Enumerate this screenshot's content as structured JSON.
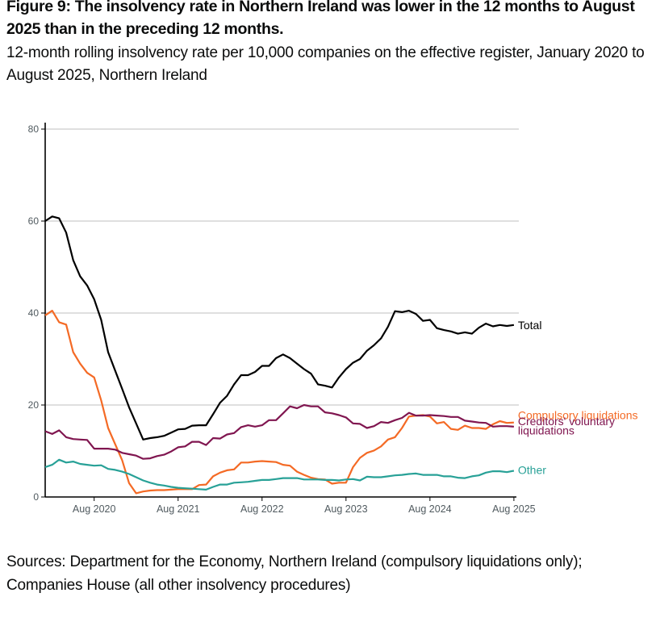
{
  "figure": {
    "title": "Figure 9: The insolvency rate in Northern Ireland was lower in the 12 months to August 2025 than in the preceding 12 months.",
    "subtitle": "12-month rolling insolvency rate per 10,000 companies on the effective register, January 2020 to August 2025, Northern Ireland",
    "source": "Sources: Department for the Economy, Northern Ireland (compulsory liquidations only); Companies House (all other insolvency procedures)"
  },
  "chart_data": {
    "type": "line",
    "title": "12-month rolling insolvency rate per 10,000 companies on the effective register",
    "xlabel": "",
    "ylabel": "",
    "x_start": "Jan 2020",
    "x_end": "Aug 2025",
    "x_ticks": [
      {
        "label": "Aug 2020",
        "month_index": 7
      },
      {
        "label": "Aug 2021",
        "month_index": 19
      },
      {
        "label": "Aug 2022",
        "month_index": 31
      },
      {
        "label": "Aug 2023",
        "month_index": 43
      },
      {
        "label": "Aug 2024",
        "month_index": 55
      },
      {
        "label": "Aug 2025",
        "month_index": 67
      }
    ],
    "y_ticks": [
      0,
      20,
      40,
      60,
      80
    ],
    "ylim": [
      0,
      80
    ],
    "grid": "horizontal",
    "legend": "direct labels at right end of lines",
    "series": [
      {
        "name": "Total",
        "label_lines": [
          "Total"
        ],
        "color": "#000000",
        "values": [
          60,
          61,
          60.6,
          57.5,
          51.5,
          48,
          46,
          43,
          38.5,
          31.5,
          27.5,
          23.5,
          19.5,
          16,
          12.5,
          12.8,
          13,
          13.3,
          14,
          14.7,
          14.8,
          15.5,
          15.6,
          15.6,
          18,
          20.5,
          22,
          24.5,
          26.5,
          26.5,
          27.2,
          28.5,
          28.5,
          30.2,
          31,
          30.2,
          29,
          27.8,
          26.8,
          24.5,
          24.2,
          23.8,
          26,
          27.8,
          29.2,
          30,
          31.8,
          33,
          34.5,
          37,
          40.4,
          40.2,
          40.5,
          39.8,
          38.3,
          38.5,
          36.7,
          36.3,
          36,
          35.5,
          35.8,
          35.5,
          36.8,
          37.7,
          37.1,
          37.4,
          37.2,
          37.4
        ]
      },
      {
        "name": "Compulsory liquidations",
        "label_lines": [
          "Compulsory liquidations"
        ],
        "color": "#f46a25",
        "values": [
          39.5,
          40.5,
          38,
          37.5,
          31.5,
          29,
          27,
          26,
          21,
          15,
          11.5,
          8,
          3,
          0.8,
          1.2,
          1.4,
          1.5,
          1.5,
          1.6,
          1.7,
          1.7,
          1.7,
          2.6,
          2.7,
          4.5,
          5.3,
          5.8,
          6,
          7.5,
          7.5,
          7.7,
          7.8,
          7.7,
          7.6,
          7,
          6.8,
          5.5,
          4.8,
          4.2,
          3.9,
          3.8,
          2.9,
          3.1,
          3.1,
          6.5,
          8.5,
          9.6,
          10.1,
          11,
          12.5,
          13,
          15,
          17.5,
          17.7,
          17.8,
          17.5,
          16,
          16.3,
          14.8,
          14.6,
          15.5,
          15,
          15,
          14.8,
          15.8,
          16.5,
          16.1,
          16.2
        ]
      },
      {
        "name": "Creditors' voluntary liquidations",
        "label_lines": [
          "Creditors' voluntary",
          "liquidations"
        ],
        "color": "#801650",
        "values": [
          14.3,
          13.7,
          14.5,
          13,
          12.6,
          12.5,
          12.4,
          10.5,
          10.5,
          10.5,
          10.3,
          9.6,
          9.3,
          9,
          8.3,
          8.4,
          8.9,
          9.2,
          9.9,
          10.8,
          11,
          12,
          12,
          11.3,
          12.8,
          12.7,
          13.6,
          13.9,
          15.2,
          15.6,
          15.3,
          15.6,
          16.7,
          16.7,
          18.2,
          19.7,
          19.3,
          20,
          19.7,
          19.7,
          18.4,
          18.2,
          17.8,
          17.3,
          16,
          15.9,
          15,
          15.4,
          16.3,
          16.1,
          16.7,
          17.2,
          18.3,
          17.7,
          17.7,
          17.8,
          17.7,
          17.6,
          17.4,
          17.4,
          16.6,
          16.4,
          16.2,
          16.1,
          15.3,
          15.4,
          15.4,
          15.3
        ]
      },
      {
        "name": "Other",
        "label_lines": [
          "Other"
        ],
        "color": "#28a197",
        "values": [
          6.5,
          7,
          8.1,
          7.5,
          7.7,
          7.2,
          7,
          6.8,
          6.9,
          6.1,
          5.9,
          5.5,
          5,
          4.3,
          3.6,
          3.1,
          2.7,
          2.5,
          2.2,
          2,
          1.9,
          1.8,
          1.7,
          1.6,
          2.2,
          2.7,
          2.7,
          3.1,
          3.2,
          3.3,
          3.5,
          3.7,
          3.7,
          3.9,
          4.1,
          4.1,
          4.1,
          3.8,
          3.8,
          3.8,
          3.7,
          3.7,
          3.6,
          3.8,
          3.9,
          3.6,
          4.4,
          4.3,
          4.3,
          4.5,
          4.7,
          4.8,
          5,
          5.1,
          4.8,
          4.8,
          4.8,
          4.5,
          4.5,
          4.2,
          4.1,
          4.5,
          4.7,
          5.3,
          5.6,
          5.6,
          5.4,
          5.7
        ]
      }
    ]
  }
}
